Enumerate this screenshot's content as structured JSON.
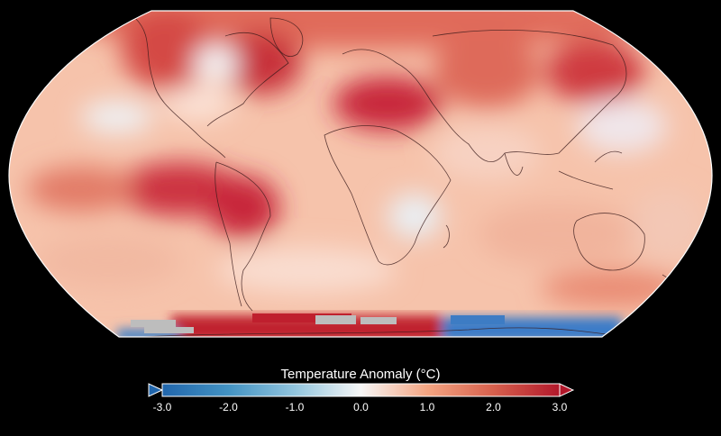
{
  "map": {
    "projection": "Robinson",
    "background_color": "#000000",
    "description_regions": [
      {
        "region": "north-atlantic",
        "level": "high"
      },
      {
        "region": "sahara-mediterranean",
        "level": "high"
      },
      {
        "region": "equatorial-pacific",
        "level": "high"
      },
      {
        "region": "south-america",
        "level": "high"
      },
      {
        "region": "east-antarctica",
        "level": "low"
      },
      {
        "region": "west-antarctica-peninsula",
        "level": "high"
      },
      {
        "region": "missing-data-patches",
        "level": "none"
      }
    ]
  },
  "legend": {
    "title": "Temperature Anomaly (°C)",
    "ticks": [
      "-3.0",
      "-2.0",
      "-1.0",
      "0.0",
      "1.0",
      "2.0",
      "3.0"
    ],
    "min": -3.0,
    "max": 3.0,
    "colors": [
      "#2166ac",
      "#4393c3",
      "#92c5de",
      "#f7f7f7",
      "#f4a582",
      "#d6604d",
      "#b2182b"
    ],
    "missing_color": "#bdbdbd"
  }
}
